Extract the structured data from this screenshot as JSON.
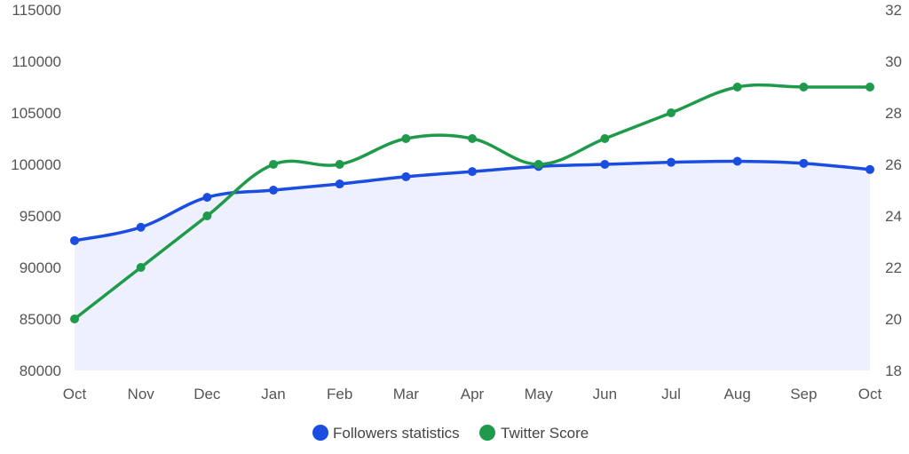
{
  "chart_data": {
    "type": "line",
    "categories": [
      "Oct",
      "Nov",
      "Dec",
      "Jan",
      "Feb",
      "Mar",
      "Apr",
      "May",
      "Jun",
      "Jul",
      "Aug",
      "Sep",
      "Oct"
    ],
    "y_left": {
      "min": 80000,
      "max": 115000,
      "ticks": [
        "80000",
        "85000",
        "90000",
        "95000",
        "100000",
        "105000",
        "110000",
        "115000"
      ]
    },
    "y_right": {
      "min": 18,
      "max": 32,
      "ticks": [
        "18",
        "20",
        "22",
        "24",
        "26",
        "28",
        "30",
        "32"
      ]
    },
    "series": [
      {
        "name": "Followers statistics",
        "axis": "left",
        "color": "#1a4de0",
        "area": true,
        "values": [
          92600,
          93900,
          96800,
          97500,
          98100,
          98800,
          99300,
          99800,
          100000,
          100200,
          100300,
          100100,
          99500
        ]
      },
      {
        "name": "Twitter Score",
        "axis": "right",
        "color": "#1e9a4a",
        "area": false,
        "values": [
          20,
          22,
          24,
          26,
          26,
          27,
          27,
          26,
          27,
          28,
          29,
          29,
          29
        ]
      }
    ],
    "legend_position": "bottom-center",
    "grid": false
  }
}
